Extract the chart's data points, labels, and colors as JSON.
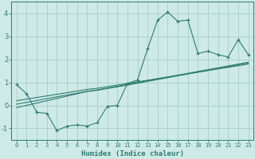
{
  "xlabel": "Humidex (Indice chaleur)",
  "ylabel": "",
  "x_data": [
    0,
    1,
    2,
    3,
    4,
    5,
    6,
    7,
    8,
    9,
    10,
    11,
    12,
    13,
    14,
    15,
    16,
    17,
    18,
    19,
    20,
    21,
    22,
    23
  ],
  "y_main": [
    0.9,
    0.5,
    -0.3,
    -0.35,
    -1.1,
    -0.9,
    -0.85,
    -0.9,
    -0.75,
    -0.05,
    0.0,
    0.95,
    1.1,
    2.45,
    3.7,
    4.05,
    3.65,
    3.7,
    2.25,
    2.35,
    2.2,
    2.1,
    2.85,
    2.2
  ],
  "y_line1": [
    -0.1,
    0.0,
    0.1,
    0.2,
    0.3,
    0.4,
    0.5,
    0.6,
    0.65,
    0.73,
    0.8,
    0.88,
    0.96,
    1.04,
    1.12,
    1.2,
    1.28,
    1.36,
    1.44,
    1.52,
    1.6,
    1.68,
    1.76,
    1.84
  ],
  "y_line2": [
    0.05,
    0.13,
    0.21,
    0.29,
    0.37,
    0.45,
    0.53,
    0.61,
    0.67,
    0.75,
    0.83,
    0.91,
    0.99,
    1.07,
    1.15,
    1.23,
    1.31,
    1.39,
    1.47,
    1.55,
    1.63,
    1.71,
    1.79,
    1.87
  ],
  "y_line3": [
    0.2,
    0.27,
    0.34,
    0.41,
    0.48,
    0.55,
    0.62,
    0.69,
    0.74,
    0.81,
    0.88,
    0.95,
    1.02,
    1.09,
    1.16,
    1.23,
    1.3,
    1.37,
    1.44,
    1.51,
    1.58,
    1.65,
    1.72,
    1.79
  ],
  "main_color": "#2e7d72",
  "bg_color": "#ceeae6",
  "grid_color": "#a8cec9",
  "tick_color": "#2e7d72",
  "xlim": [
    -0.5,
    23.5
  ],
  "ylim": [
    -1.5,
    4.5
  ],
  "yticks": [
    -1,
    0,
    1,
    2,
    3,
    4
  ],
  "xticks": [
    0,
    1,
    2,
    3,
    4,
    5,
    6,
    7,
    8,
    9,
    10,
    11,
    12,
    13,
    14,
    15,
    16,
    17,
    18,
    19,
    20,
    21,
    22,
    23
  ]
}
